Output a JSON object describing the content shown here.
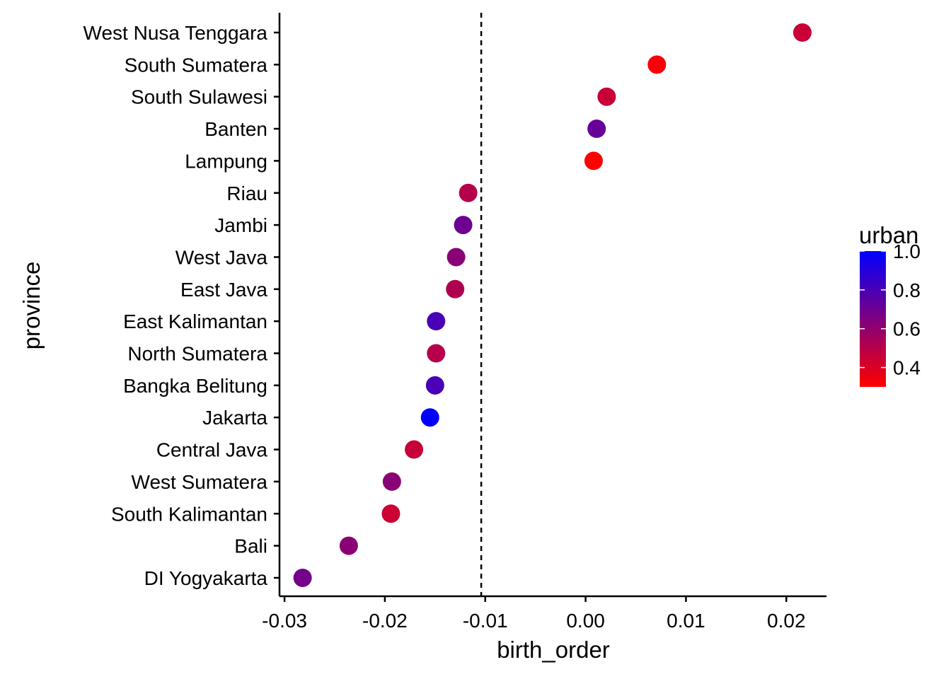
{
  "chart_data": {
    "type": "scatter",
    "xlabel": "birth_order",
    "ylabel": "province",
    "xlim": [
      -0.0305,
      0.024
    ],
    "x_ticks": [
      -0.03,
      -0.02,
      -0.01,
      0.0,
      0.01,
      0.02
    ],
    "x_tick_labels": [
      "-0.03",
      "-0.02",
      "-0.01",
      "0.00",
      "0.01",
      "0.02"
    ],
    "reference_line": {
      "x": -0.0104,
      "style": "dashed"
    },
    "grid": false,
    "legend": {
      "title": "urban",
      "placement": "right",
      "range": [
        0.3,
        1.0
      ],
      "ticks": [
        1.0,
        0.8,
        0.6,
        0.4
      ],
      "tick_labels": [
        "1.0",
        "0.8",
        "0.6",
        "0.4"
      ],
      "low_color": "#ff0000",
      "high_color": "#0000ff"
    },
    "points": [
      {
        "province": "West Nusa Tenggara",
        "birth_order": 0.0216,
        "urban": 0.45
      },
      {
        "province": "South Sumatera",
        "birth_order": 0.0071,
        "urban": 0.32
      },
      {
        "province": "South Sulawesi",
        "birth_order": 0.0021,
        "urban": 0.45
      },
      {
        "province": "Banten",
        "birth_order": 0.0011,
        "urban": 0.72
      },
      {
        "province": "Lampung",
        "birth_order": 0.0008,
        "urban": 0.3
      },
      {
        "province": "Riau",
        "birth_order": -0.0117,
        "urban": 0.5
      },
      {
        "province": "Jambi",
        "birth_order": -0.0122,
        "urban": 0.7
      },
      {
        "province": "West Java",
        "birth_order": -0.0129,
        "urban": 0.62
      },
      {
        "province": "East Java",
        "birth_order": -0.013,
        "urban": 0.52
      },
      {
        "province": "East Kalimantan",
        "birth_order": -0.0149,
        "urban": 0.8
      },
      {
        "province": "North Sumatera",
        "birth_order": -0.0149,
        "urban": 0.5
      },
      {
        "province": "Bangka Belitung",
        "birth_order": -0.015,
        "urban": 0.8
      },
      {
        "province": "Jakarta",
        "birth_order": -0.0155,
        "urban": 1.0
      },
      {
        "province": "Central Java",
        "birth_order": -0.0171,
        "urban": 0.46
      },
      {
        "province": "West Sumatera",
        "birth_order": -0.0193,
        "urban": 0.62
      },
      {
        "province": "South Kalimantan",
        "birth_order": -0.0194,
        "urban": 0.44
      },
      {
        "province": "Bali",
        "birth_order": -0.0236,
        "urban": 0.62
      },
      {
        "province": "DI Yogyakarta",
        "birth_order": -0.0282,
        "urban": 0.68
      }
    ]
  }
}
